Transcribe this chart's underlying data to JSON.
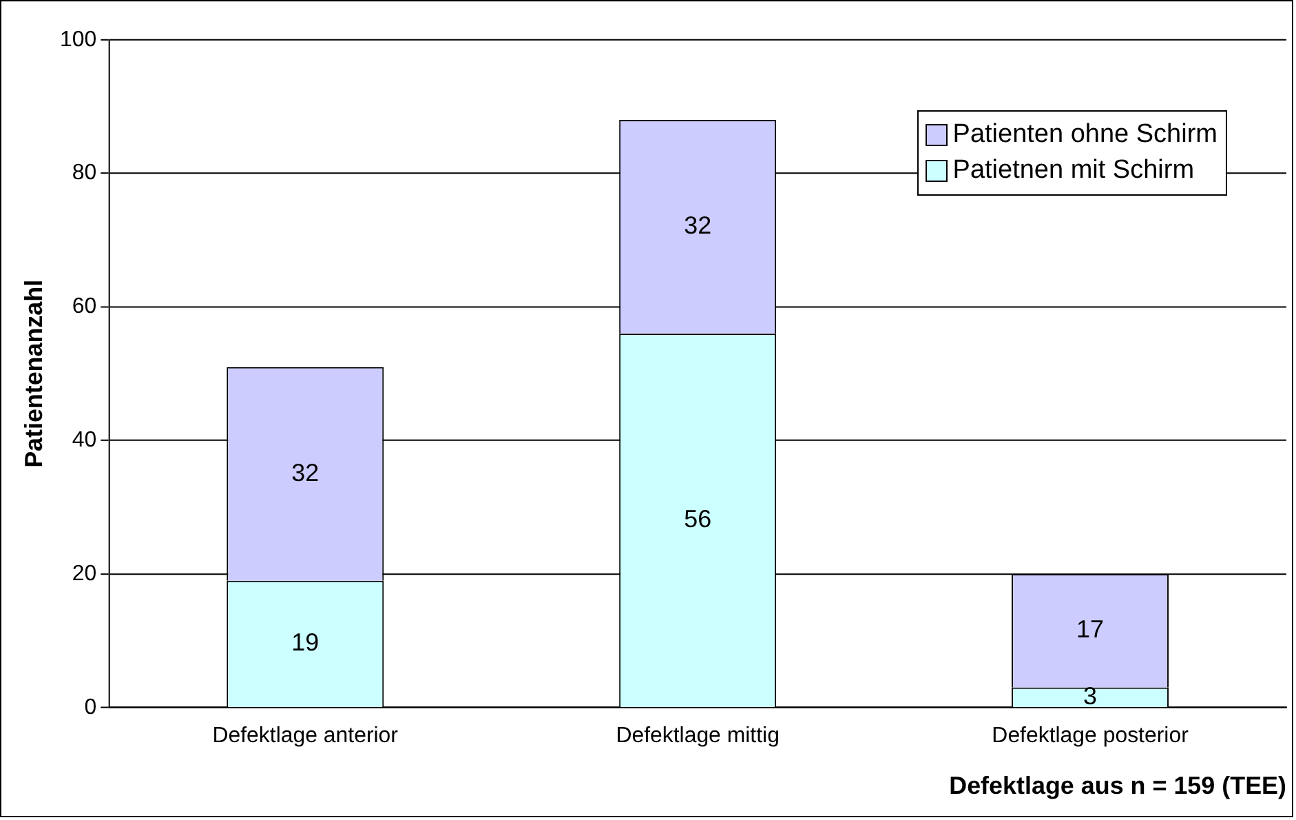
{
  "chart_data": {
    "type": "bar",
    "stacked": true,
    "xlabel": "Defektlage aus n = 159 (TEE)",
    "ylabel": "Patientenanzahl",
    "categories": [
      "Defektlage anterior",
      "Defektlage mittig",
      "Defektlage posterior"
    ],
    "series": [
      {
        "name": "Patietnen mit Schirm",
        "color": "#ccffff",
        "values": [
          19,
          56,
          3
        ]
      },
      {
        "name": "Patienten ohne Schirm",
        "color": "#ccccff",
        "values": [
          32,
          32,
          17
        ]
      }
    ],
    "ylim": [
      0,
      100
    ],
    "yticks": [
      0,
      20,
      40,
      60,
      80,
      100
    ],
    "grid": "y",
    "legend": "top right",
    "data_labels": true
  }
}
